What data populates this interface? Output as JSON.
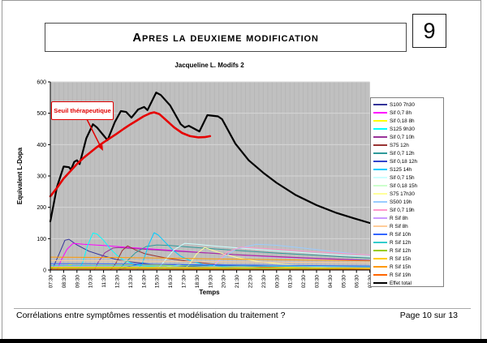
{
  "page": {
    "title": "Apres la deuxieme modification",
    "number": "9"
  },
  "footer": {
    "left": "Corrélations entre symptômes ressentis et modélisation du traitement ?",
    "right": "Page 10 sur 13"
  },
  "chart_data": {
    "type": "line",
    "title": "Jacqueline L. Modifs 2",
    "xlabel": "Temps",
    "ylabel": "Equivalent L-Dopa",
    "ylim": [
      0,
      600
    ],
    "y_ticks": [
      "0",
      "100",
      "200",
      "300",
      "400",
      "500",
      "600"
    ],
    "x_ticks": [
      "07:30",
      "08:30",
      "09:30",
      "10:30",
      "11:30",
      "12:30",
      "13:30",
      "14:30",
      "15:30",
      "16:30",
      "17:30",
      "18:30",
      "19:30",
      "20:30",
      "21:30",
      "22:30",
      "23:30",
      "00:30",
      "01:30",
      "02:30",
      "03:30",
      "04:30",
      "05:30",
      "06:30",
      "07:30"
    ],
    "x_start_hour": 7.5,
    "x_end_hour": 31.5,
    "plot_bg": "#C0C0C0",
    "grid_color": "#D6D6D6",
    "legend_position": "right",
    "annotation": {
      "text": "Seuil thérapeutique",
      "color": "#E00000"
    },
    "series": [
      {
        "name": "S100 7h30",
        "color": "#333399",
        "width": 1,
        "points": [
          [
            7.5,
            0
          ],
          [
            7.75,
            12
          ],
          [
            8.2,
            55
          ],
          [
            8.6,
            95
          ],
          [
            8.9,
            98
          ],
          [
            9.5,
            80
          ],
          [
            10.4,
            60
          ],
          [
            11.5,
            45
          ],
          [
            12.5,
            33
          ],
          [
            13.5,
            26
          ],
          [
            15,
            19
          ],
          [
            17,
            13
          ],
          [
            19.5,
            8
          ],
          [
            24,
            4
          ],
          [
            31.5,
            2
          ]
        ]
      },
      {
        "name": "Sif 0,7 8h",
        "color": "#FF00FF",
        "width": 1,
        "points": [
          [
            8,
            0
          ],
          [
            8.3,
            30
          ],
          [
            8.75,
            66
          ],
          [
            9.2,
            85
          ],
          [
            10,
            82
          ],
          [
            11.5,
            78
          ],
          [
            13.5,
            72
          ],
          [
            15.5,
            66
          ],
          [
            17.5,
            60
          ],
          [
            19.5,
            54
          ],
          [
            22,
            47
          ],
          [
            25,
            41
          ],
          [
            28,
            36
          ],
          [
            31.5,
            30
          ]
        ]
      },
      {
        "name": "Sif 0,18 8h",
        "color": "#FFFF00",
        "width": 1,
        "points": [
          [
            8,
            0
          ],
          [
            8.5,
            10
          ],
          [
            9.2,
            20
          ],
          [
            11,
            19
          ],
          [
            14,
            17
          ],
          [
            17,
            15
          ],
          [
            20,
            13
          ],
          [
            24,
            11
          ],
          [
            28,
            9
          ],
          [
            31.5,
            8
          ]
        ]
      },
      {
        "name": "S125 9h30",
        "color": "#00FFFF",
        "width": 1,
        "points": [
          [
            9.5,
            0
          ],
          [
            9.9,
            20
          ],
          [
            10.3,
            78
          ],
          [
            10.7,
            118
          ],
          [
            11,
            115
          ],
          [
            11.5,
            95
          ],
          [
            12,
            68
          ],
          [
            12.5,
            47
          ],
          [
            13,
            32
          ],
          [
            13.7,
            20
          ],
          [
            14.5,
            13
          ],
          [
            16,
            7
          ],
          [
            18,
            4
          ],
          [
            21,
            2
          ],
          [
            31.5,
            1
          ]
        ]
      },
      {
        "name": "Sif 0,7 10h",
        "color": "#993399",
        "width": 1,
        "points": [
          [
            10.8,
            0
          ],
          [
            11.1,
            25
          ],
          [
            11.6,
            55
          ],
          [
            12.2,
            70
          ],
          [
            12.6,
            72
          ],
          [
            13.5,
            69
          ],
          [
            15,
            65
          ],
          [
            17,
            60
          ],
          [
            19,
            55
          ],
          [
            21.5,
            49
          ],
          [
            24,
            44
          ],
          [
            27,
            38
          ],
          [
            31.5,
            31
          ]
        ]
      },
      {
        "name": "S75 12h",
        "color": "#993333",
        "width": 1,
        "points": [
          [
            12,
            0
          ],
          [
            12.4,
            20
          ],
          [
            12.9,
            62
          ],
          [
            13.3,
            77
          ],
          [
            13.9,
            64
          ],
          [
            14.6,
            52
          ],
          [
            15.5,
            44
          ],
          [
            16.5,
            36
          ],
          [
            18,
            27
          ],
          [
            19.5,
            20
          ],
          [
            21.5,
            14
          ],
          [
            24,
            9
          ],
          [
            27,
            6
          ],
          [
            31.5,
            3
          ]
        ]
      },
      {
        "name": "Sif 0,7 12h",
        "color": "#2E9999",
        "width": 1,
        "points": [
          [
            12.6,
            0
          ],
          [
            13.1,
            22
          ],
          [
            13.9,
            55
          ],
          [
            14.7,
            75
          ],
          [
            15.5,
            80
          ],
          [
            16.5,
            78
          ],
          [
            18,
            73
          ],
          [
            20,
            67
          ],
          [
            22,
            61
          ],
          [
            24.5,
            54
          ],
          [
            27,
            48
          ],
          [
            29.5,
            42
          ],
          [
            31.5,
            38
          ]
        ]
      },
      {
        "name": "Sif 0,18 12h",
        "color": "#3344CC",
        "width": 1,
        "points": [
          [
            12.6,
            0
          ],
          [
            13.3,
            10
          ],
          [
            14.1,
            19
          ],
          [
            15.5,
            18
          ],
          [
            18,
            16
          ],
          [
            21,
            14
          ],
          [
            25,
            12
          ],
          [
            31.5,
            9
          ]
        ]
      },
      {
        "name": "S125 14h",
        "color": "#00CCFF",
        "width": 1,
        "points": [
          [
            14,
            0
          ],
          [
            14.4,
            20
          ],
          [
            14.9,
            82
          ],
          [
            15.3,
            119
          ],
          [
            15.6,
            112
          ],
          [
            16.1,
            90
          ],
          [
            16.7,
            64
          ],
          [
            17.3,
            44
          ],
          [
            18,
            30
          ],
          [
            19,
            18
          ],
          [
            20.5,
            10
          ],
          [
            22.5,
            5
          ],
          [
            26,
            2
          ],
          [
            31.5,
            1
          ]
        ]
      },
      {
        "name": "Sif 0,7 15h",
        "color": "#CCFFFF",
        "width": 1,
        "points": [
          [
            15.5,
            0
          ],
          [
            16,
            25
          ],
          [
            16.8,
            65
          ],
          [
            17.6,
            85
          ],
          [
            18.5,
            82
          ],
          [
            20,
            76
          ],
          [
            22,
            69
          ],
          [
            24.5,
            61
          ],
          [
            27,
            54
          ],
          [
            29.5,
            47
          ],
          [
            31.5,
            43
          ]
        ]
      },
      {
        "name": "Sif 0,18 15h",
        "color": "#CCFFCC",
        "width": 1,
        "points": [
          [
            15.5,
            0
          ],
          [
            16.3,
            10
          ],
          [
            17.5,
            19
          ],
          [
            19,
            18
          ],
          [
            22,
            16
          ],
          [
            25,
            14
          ],
          [
            28,
            12
          ],
          [
            31.5,
            10
          ]
        ]
      },
      {
        "name": "S75 17h30",
        "color": "#FFFF99",
        "width": 1,
        "points": [
          [
            17.5,
            0
          ],
          [
            17.9,
            16
          ],
          [
            18.5,
            52
          ],
          [
            19.1,
            72
          ],
          [
            19.8,
            61
          ],
          [
            20.6,
            50
          ],
          [
            21.6,
            39
          ],
          [
            23,
            28
          ],
          [
            25,
            18
          ],
          [
            27,
            11
          ],
          [
            29.5,
            6
          ],
          [
            31.5,
            4
          ]
        ]
      },
      {
        "name": "S500 19h",
        "color": "#99CCFF",
        "width": 1,
        "points": [
          [
            19.5,
            0
          ],
          [
            20.3,
            35
          ],
          [
            21.5,
            68
          ],
          [
            23,
            82
          ],
          [
            24.5,
            79
          ],
          [
            26.5,
            70
          ],
          [
            28.5,
            60
          ],
          [
            30.5,
            51
          ],
          [
            31.5,
            47
          ]
        ]
      },
      {
        "name": "Sif 0,7 19h",
        "color": "#FF99CC",
        "width": 1,
        "points": [
          [
            19.5,
            0
          ],
          [
            20,
            25
          ],
          [
            20.8,
            58
          ],
          [
            21.8,
            73
          ],
          [
            23,
            70
          ],
          [
            25,
            65
          ],
          [
            27,
            59
          ],
          [
            29,
            54
          ],
          [
            31.5,
            48
          ]
        ]
      },
      {
        "name": "R Sif 8h",
        "color": "#CC99FF",
        "width": 1,
        "points": [
          [
            7.5,
            11
          ],
          [
            12,
            10
          ],
          [
            16,
            9
          ],
          [
            22,
            8
          ],
          [
            31.5,
            7
          ]
        ]
      },
      {
        "name": "R Sif 8h",
        "color": "#FFCC99",
        "width": 1,
        "points": [
          [
            7.5,
            30
          ],
          [
            13,
            29
          ],
          [
            18,
            27
          ],
          [
            24,
            25
          ],
          [
            31.5,
            23
          ]
        ]
      },
      {
        "name": "R Sif 10h",
        "color": "#3366FF",
        "width": 1,
        "points": [
          [
            7.5,
            20
          ],
          [
            10,
            20
          ],
          [
            14,
            19
          ],
          [
            19,
            17
          ],
          [
            25,
            15
          ],
          [
            31.5,
            13
          ]
        ]
      },
      {
        "name": "R Sif 12h",
        "color": "#33CCCC",
        "width": 1,
        "points": [
          [
            7.5,
            14
          ],
          [
            12,
            14
          ],
          [
            17,
            13
          ],
          [
            23,
            12
          ],
          [
            31.5,
            10
          ]
        ]
      },
      {
        "name": "R Sif 12h",
        "color": "#99CC00",
        "width": 1,
        "points": [
          [
            7.5,
            6
          ],
          [
            14,
            6
          ],
          [
            21,
            5
          ],
          [
            31.5,
            5
          ]
        ]
      },
      {
        "name": "R Sif 15h",
        "color": "#FFCC00",
        "width": 1,
        "points": [
          [
            7.5,
            9
          ],
          [
            13,
            9
          ],
          [
            19,
            8
          ],
          [
            26,
            7
          ],
          [
            31.5,
            6
          ]
        ]
      },
      {
        "name": "R Sif 15h",
        "color": "#FF9900",
        "width": 1,
        "points": [
          [
            7.5,
            41
          ],
          [
            12,
            40
          ],
          [
            16,
            38
          ],
          [
            21,
            35
          ],
          [
            26,
            32
          ],
          [
            31.5,
            29
          ]
        ]
      },
      {
        "name": "R Sif 19h",
        "color": "#FF6600",
        "width": 1,
        "points": [
          [
            7.5,
            3
          ],
          [
            15,
            3
          ],
          [
            23,
            2
          ],
          [
            31.5,
            2
          ]
        ]
      },
      {
        "name": "Effet total",
        "color": "#000000",
        "width": 2.2,
        "points": [
          [
            7.5,
            155
          ],
          [
            8,
            265
          ],
          [
            8.5,
            330
          ],
          [
            8.9,
            328
          ],
          [
            9.05,
            320
          ],
          [
            9.3,
            345
          ],
          [
            9.5,
            350
          ],
          [
            9.7,
            338
          ],
          [
            10.2,
            420
          ],
          [
            10.7,
            465
          ],
          [
            11,
            455
          ],
          [
            11.8,
            414
          ],
          [
            12.35,
            472
          ],
          [
            12.8,
            507
          ],
          [
            13.2,
            504
          ],
          [
            13.6,
            486
          ],
          [
            14.1,
            512
          ],
          [
            14.55,
            520
          ],
          [
            14.8,
            510
          ],
          [
            15.45,
            566
          ],
          [
            15.8,
            558
          ],
          [
            16.5,
            525
          ],
          [
            17.3,
            465
          ],
          [
            17.6,
            455
          ],
          [
            17.9,
            460
          ],
          [
            18.7,
            442
          ],
          [
            19.3,
            494
          ],
          [
            20.1,
            490
          ],
          [
            20.4,
            481
          ],
          [
            21.4,
            403
          ],
          [
            22.4,
            350
          ],
          [
            23.5,
            310
          ],
          [
            24.5,
            278
          ],
          [
            25.9,
            240
          ],
          [
            27.5,
            207
          ],
          [
            29,
            182
          ],
          [
            30.3,
            165
          ],
          [
            31.5,
            150
          ]
        ]
      },
      {
        "name": "Seuil thérapeutique",
        "color": "#E60000",
        "width": 2.6,
        "in_legend": false,
        "points": [
          [
            7.5,
            235
          ],
          [
            8,
            262
          ],
          [
            8.5,
            292
          ],
          [
            9,
            315
          ],
          [
            9.5,
            338
          ],
          [
            10,
            358
          ],
          [
            10.5,
            375
          ],
          [
            11,
            392
          ],
          [
            11.5,
            407
          ],
          [
            12,
            421
          ],
          [
            12.5,
            435
          ],
          [
            13,
            450
          ],
          [
            13.5,
            464
          ],
          [
            14,
            477
          ],
          [
            14.5,
            490
          ],
          [
            15,
            500
          ],
          [
            15.3,
            503
          ],
          [
            15.7,
            497
          ],
          [
            16.2,
            478
          ],
          [
            16.8,
            455
          ],
          [
            17.4,
            437
          ],
          [
            18,
            427
          ],
          [
            18.6,
            423
          ],
          [
            19.1,
            424
          ],
          [
            19.5,
            427
          ]
        ]
      }
    ]
  }
}
